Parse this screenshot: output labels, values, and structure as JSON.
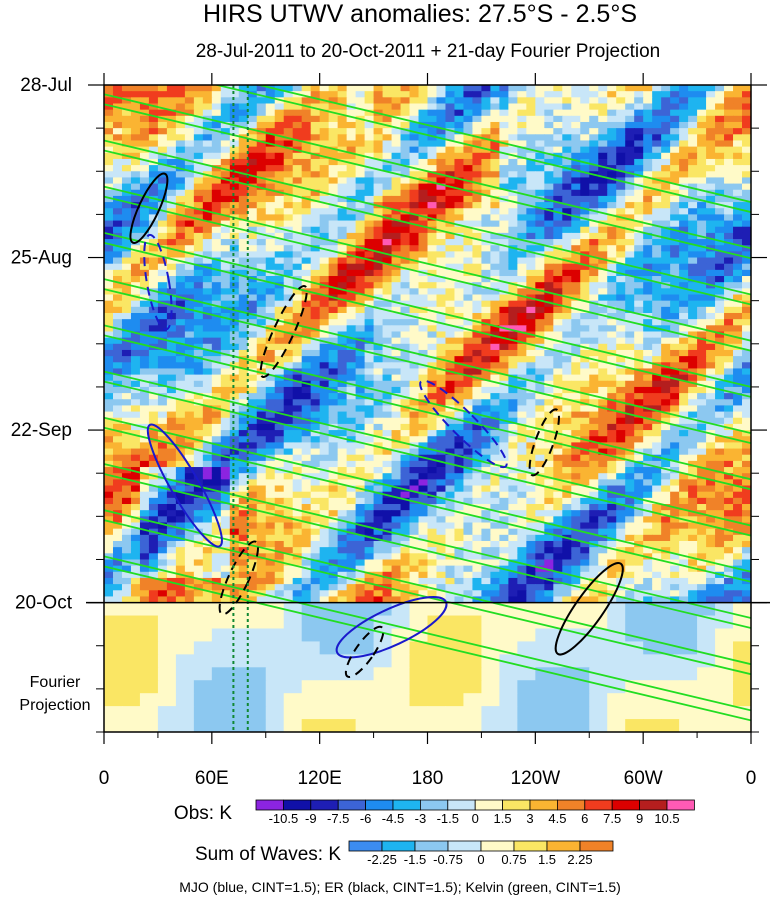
{
  "chart_data": {
    "type": "heatmap",
    "title": "HIRS UTWV anomalies: 27.5°S - 2.5°S",
    "subtitle": "28-Jul-2011 to 20-Oct-2011 + 21-day Fourier Projection",
    "x_ticks": [
      "0",
      "60E",
      "120E",
      "180",
      "120W",
      "60W",
      "0"
    ],
    "x_tick_values": [
      0,
      60,
      120,
      180,
      240,
      300,
      360
    ],
    "xlim": [
      0,
      360
    ],
    "y_ticks": [
      "28-Jul",
      "25-Aug",
      "22-Sep",
      "20-Oct"
    ],
    "y_tick_days": [
      0,
      28,
      56,
      84
    ],
    "ylim_days": [
      0,
      105
    ],
    "projection_start_day": 84,
    "projection_label": [
      "Fourier",
      "Projection"
    ],
    "reference_longitudes": [
      72,
      80
    ],
    "obs_colorbar": {
      "label": "Obs: K",
      "ticks": [
        "-10.5",
        "-9",
        "-7.5",
        "-6",
        "-4.5",
        "-3",
        "-1.5",
        "0",
        "1.5",
        "3",
        "4.5",
        "6",
        "7.5",
        "9",
        "10.5"
      ],
      "colors": [
        "#8c24e0",
        "#1010a8",
        "#1e1eb4",
        "#3c64d6",
        "#1e8cf0",
        "#1eb4f0",
        "#8cc8f0",
        "#c8e6f8",
        "#fffac8",
        "#fae664",
        "#fab432",
        "#f08228",
        "#f03c1e",
        "#dc0000",
        "#b41e1e",
        "#ff5ab4"
      ]
    },
    "waves_colorbar": {
      "label": "Sum of Waves: K",
      "ticks": [
        "-2.25",
        "-1.5",
        "-0.75",
        "0",
        "0.75",
        "1.5",
        "2.25"
      ],
      "colors": [
        "#3c8cf0",
        "#1eb4f0",
        "#8cc8f0",
        "#c8e6f8",
        "#fffac8",
        "#fae664",
        "#fab432",
        "#f08228"
      ]
    },
    "wave_overlays": [
      {
        "name": "MJO",
        "color": "blue",
        "cint": 1.5
      },
      {
        "name": "ER",
        "color": "black",
        "cint": 1.5
      },
      {
        "name": "Kelvin",
        "color": "green",
        "cint": 1.5
      }
    ],
    "footnote": "MJO (blue, CINT=1.5); ER (black, CINT=1.5); Kelvin (green, CINT=1.5)"
  }
}
